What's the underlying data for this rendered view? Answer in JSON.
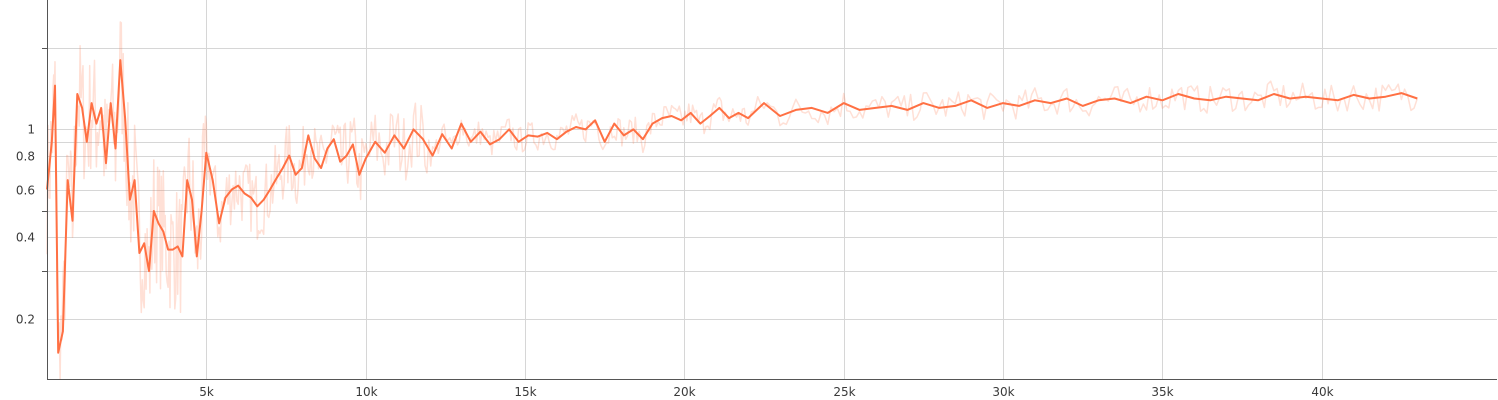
{
  "chart_data": {
    "type": "line",
    "xlabel": "",
    "ylabel": "",
    "x_scale": "linear",
    "y_scale": "log",
    "xlim": [
      0,
      45500
    ],
    "ylim": [
      0.12,
      3.0
    ],
    "grid": true,
    "x_ticks": [
      {
        "value": 5000,
        "label": "5k"
      },
      {
        "value": 10000,
        "label": "10k"
      },
      {
        "value": 15000,
        "label": "15k"
      },
      {
        "value": 20000,
        "label": "20k"
      },
      {
        "value": 25000,
        "label": "25k"
      },
      {
        "value": 30000,
        "label": "30k"
      },
      {
        "value": 35000,
        "label": "35k"
      },
      {
        "value": 40000,
        "label": "40k"
      }
    ],
    "y_ticks": [
      {
        "value": 0.2,
        "label": "0.2"
      },
      {
        "value": 0.3,
        "label": ""
      },
      {
        "value": 0.4,
        "label": "0.4"
      },
      {
        "value": 0.5,
        "label": ""
      },
      {
        "value": 0.6,
        "label": "0.6"
      },
      {
        "value": 0.7,
        "label": ""
      },
      {
        "value": 0.8,
        "label": "0.8"
      },
      {
        "value": 0.9,
        "label": ""
      },
      {
        "value": 1,
        "label": "1"
      },
      {
        "value": 2,
        "label": ""
      }
    ],
    "series": [
      {
        "color": "#ff7043",
        "style": "smoothed",
        "x": [
          0,
          150,
          250,
          350,
          500,
          650,
          800,
          950,
          1100,
          1250,
          1400,
          1550,
          1700,
          1850,
          2000,
          2150,
          2300,
          2450,
          2600,
          2750,
          2900,
          3050,
          3200,
          3350,
          3500,
          3650,
          3800,
          3950,
          4100,
          4250,
          4400,
          4550,
          4700,
          4850,
          5000,
          5200,
          5400,
          5600,
          5800,
          6000,
          6200,
          6400,
          6600,
          6800,
          7000,
          7200,
          7400,
          7600,
          7800,
          8000,
          8200,
          8400,
          8600,
          8800,
          9000,
          9200,
          9400,
          9600,
          9800,
          10000,
          10300,
          10600,
          10900,
          11200,
          11500,
          11800,
          12100,
          12400,
          12700,
          13000,
          13300,
          13600,
          13900,
          14200,
          14500,
          14800,
          15100,
          15400,
          15700,
          16000,
          16300,
          16600,
          16900,
          17200,
          17500,
          17800,
          18100,
          18400,
          18700,
          19000,
          19300,
          19600,
          19900,
          20200,
          20500,
          20800,
          21100,
          21400,
          21700,
          22000,
          22500,
          23000,
          23500,
          24000,
          24500,
          25000,
          25500,
          26000,
          26500,
          27000,
          27500,
          28000,
          28500,
          29000,
          29500,
          30000,
          30500,
          31000,
          31500,
          32000,
          32500,
          33000,
          33500,
          34000,
          34500,
          35000,
          35500,
          36000,
          36500,
          37000,
          37500,
          38000,
          38500,
          39000,
          39500,
          40000,
          40500,
          41000,
          41500,
          42000,
          42500,
          43000
        ],
        "values": [
          0.6,
          0.9,
          1.45,
          0.15,
          0.18,
          0.65,
          0.46,
          1.35,
          1.2,
          0.9,
          1.25,
          1.05,
          1.2,
          0.75,
          1.25,
          0.85,
          1.8,
          1.1,
          0.55,
          0.65,
          0.35,
          0.38,
          0.3,
          0.5,
          0.45,
          0.42,
          0.36,
          0.36,
          0.37,
          0.34,
          0.65,
          0.55,
          0.34,
          0.5,
          0.82,
          0.65,
          0.45,
          0.56,
          0.6,
          0.62,
          0.58,
          0.56,
          0.52,
          0.55,
          0.6,
          0.66,
          0.72,
          0.8,
          0.68,
          0.72,
          0.95,
          0.78,
          0.72,
          0.85,
          0.92,
          0.76,
          0.8,
          0.88,
          0.68,
          0.78,
          0.9,
          0.82,
          0.95,
          0.85,
          1.0,
          0.92,
          0.8,
          0.96,
          0.85,
          1.05,
          0.9,
          0.98,
          0.88,
          0.92,
          1.0,
          0.9,
          0.95,
          0.94,
          0.97,
          0.92,
          0.98,
          1.02,
          1.0,
          1.08,
          0.9,
          1.05,
          0.95,
          1.0,
          0.92,
          1.05,
          1.1,
          1.12,
          1.08,
          1.15,
          1.05,
          1.12,
          1.2,
          1.1,
          1.15,
          1.1,
          1.25,
          1.12,
          1.18,
          1.2,
          1.15,
          1.25,
          1.18,
          1.2,
          1.22,
          1.18,
          1.25,
          1.2,
          1.22,
          1.28,
          1.2,
          1.25,
          1.22,
          1.28,
          1.25,
          1.3,
          1.22,
          1.28,
          1.3,
          1.25,
          1.32,
          1.28,
          1.35,
          1.3,
          1.28,
          1.32,
          1.3,
          1.28,
          1.35,
          1.3,
          1.32,
          1.3,
          1.28,
          1.34,
          1.3,
          1.32,
          1.36,
          1.3
        ]
      }
    ]
  }
}
